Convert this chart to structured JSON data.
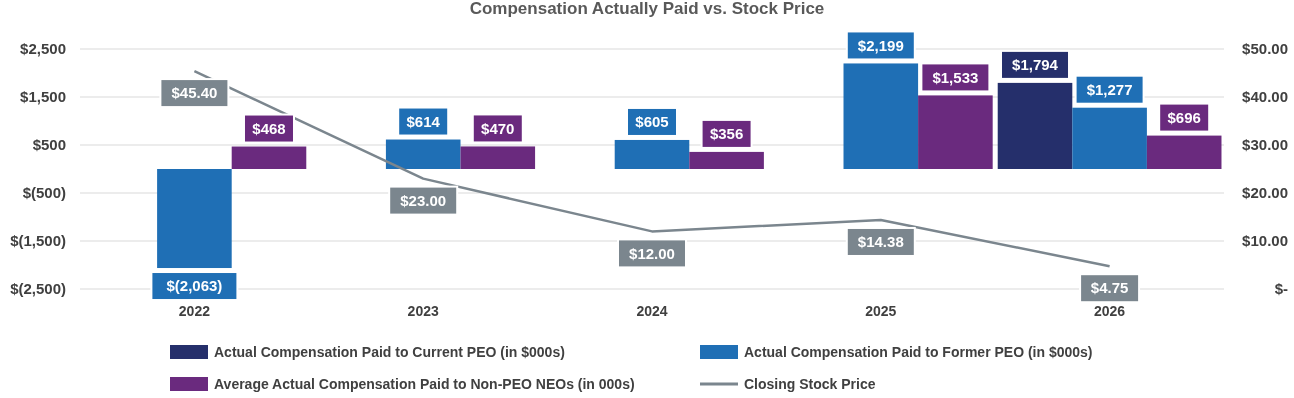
{
  "chart_data": {
    "type": "bar",
    "title": "Compensation Actually Paid vs. Stock Price",
    "categories": [
      "2022",
      "2023",
      "2024",
      "2025",
      "2026"
    ],
    "series": [
      {
        "name": "Actual Compensation Paid to Current PEO (in $000s)",
        "color": "#252f6b",
        "values": [
          null,
          null,
          null,
          null,
          1794
        ],
        "value_labels": [
          null,
          null,
          null,
          null,
          "$1,794"
        ]
      },
      {
        "name": "Actual Compensation Paid to Former PEO (in $000s)",
        "color": "#1f6fb5",
        "values": [
          -2063,
          614,
          605,
          2199,
          1277
        ],
        "value_labels": [
          "$(2,063)",
          "$614",
          "$605",
          "$2,199",
          "$1,277"
        ]
      },
      {
        "name": "Average Actual Compensation Paid to Non-PEO NEOs (in 000s)",
        "color": "#6a2a7e",
        "values": [
          468,
          470,
          356,
          1533,
          696
        ],
        "value_labels": [
          "$468",
          "$470",
          "$356",
          "$1,533",
          "$696"
        ]
      },
      {
        "name": "Closing Stock Price",
        "type": "line",
        "axis": "y2",
        "color": "#7b868e",
        "values": [
          45.4,
          23.0,
          12.0,
          14.38,
          4.75
        ],
        "value_labels": [
          "$45.40",
          "$23.00",
          "$12.00",
          "$14.38",
          "$4.75"
        ]
      }
    ],
    "ylim": [
      -2500,
      2500
    ],
    "yticks": [
      {
        "value": -2500,
        "label": "$(2,500)"
      },
      {
        "value": -1500,
        "label": "$(1,500)"
      },
      {
        "value": -500,
        "label": "$(500)"
      },
      {
        "value": 500,
        "label": "$500"
      },
      {
        "value": 1500,
        "label": "$1,500"
      },
      {
        "value": 2500,
        "label": "$2,500"
      }
    ],
    "y2lim": [
      0,
      50
    ],
    "y2ticks": [
      {
        "value": 0,
        "label": "$-"
      },
      {
        "value": 10,
        "label": "$10.00"
      },
      {
        "value": 20,
        "label": "$20.00"
      },
      {
        "value": 30,
        "label": "$30.00"
      },
      {
        "value": 40,
        "label": "$40.00"
      },
      {
        "value": 50,
        "label": "$50.00"
      }
    ],
    "grid": "y",
    "legend": "bottom",
    "marker": "none"
  }
}
